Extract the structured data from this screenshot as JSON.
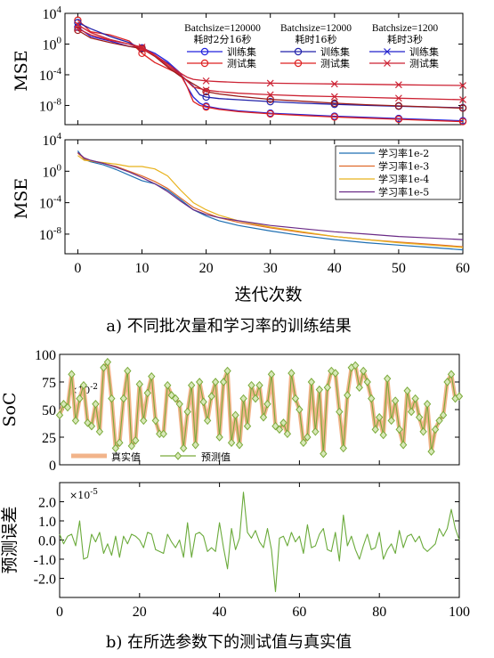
{
  "captions": {
    "a": "a)  不同批次量和学习率的训练结果",
    "b": "b)  在所选参数下的测试值与真实值"
  },
  "chart_data": [
    {
      "id": "batch",
      "type": "line",
      "ylabel": "MSE",
      "yscale": "log",
      "xlim": [
        -2,
        60
      ],
      "ylim_exp": [
        -10.5,
        4
      ],
      "yticks": [
        {
          "v": 4,
          "label": "10",
          "sup": "4"
        },
        {
          "v": 0,
          "label": "10",
          "sup": "0"
        },
        {
          "v": -4,
          "label": "10",
          "sup": "-4"
        },
        {
          "v": -8,
          "label": "10",
          "sup": "-8"
        }
      ],
      "legend_groups": [
        {
          "title": "Batchsize=120000",
          "time": "耗时2分16秒",
          "color": "#2222cc"
        },
        {
          "title": "Batchsize=12000",
          "time": "耗时16秒",
          "color": "#a02020"
        },
        {
          "title": "Batchsize=1200",
          "time": "耗时3秒",
          "color": "#dd2222"
        }
      ],
      "legend_labels": {
        "train": "训练集",
        "test": "测试集"
      },
      "series": [
        {
          "name": "Batchsize=120000 训练集",
          "color": "#2222dd",
          "marker": "o",
          "x": [
            0,
            2,
            5,
            8,
            10,
            12,
            14,
            16,
            17,
            18,
            19,
            20,
            22,
            25,
            30,
            35,
            40,
            45,
            50,
            55,
            60
          ],
          "y": [
            2.2,
            1.0,
            0.4,
            -0.3,
            -0.5,
            -1.2,
            -2.3,
            -3.8,
            -5.5,
            -6.9,
            -7.7,
            -8.1,
            -8.4,
            -8.7,
            -9.0,
            -9.2,
            -9.4,
            -9.55,
            -9.7,
            -9.85,
            -10.0
          ]
        },
        {
          "name": "Batchsize=120000 测试集",
          "color": "#dd2222",
          "marker": "o",
          "x": [
            0,
            1,
            2,
            5,
            8,
            10,
            12,
            14,
            16,
            17,
            18,
            19,
            20,
            22,
            25,
            30,
            35,
            40,
            45,
            50,
            55,
            60
          ],
          "y": [
            3.1,
            2.4,
            1.6,
            1.2,
            0.4,
            -1.2,
            -2.4,
            -3.2,
            -4.0,
            -5.5,
            -7.5,
            -8.0,
            -8.2,
            -8.5,
            -8.8,
            -9.1,
            -9.3,
            -9.5,
            -9.65,
            -9.8,
            -9.95,
            -10.1
          ]
        },
        {
          "name": "Batchsize=12000 训练集",
          "color": "#2222aa",
          "marker": "o",
          "x": [
            0,
            2,
            5,
            8,
            10,
            12,
            14,
            16,
            18,
            19,
            20,
            22,
            25,
            30,
            35,
            40,
            45,
            50,
            55,
            60
          ],
          "y": [
            2.8,
            2.0,
            1.0,
            0.2,
            -0.6,
            -1.5,
            -2.5,
            -4.0,
            -5.5,
            -6.6,
            -6.9,
            -7.1,
            -7.25,
            -7.5,
            -7.7,
            -7.85,
            -8.0,
            -8.1,
            -8.2,
            -8.3
          ]
        },
        {
          "name": "Batchsize=12000 测试集",
          "color": "#991a1a",
          "marker": "o",
          "x": [
            0,
            2,
            5,
            8,
            10,
            12,
            14,
            16,
            18,
            20,
            22,
            25,
            30,
            35,
            40,
            45,
            50,
            55,
            60
          ],
          "y": [
            1.8,
            0.8,
            0.2,
            -0.3,
            -0.6,
            -1.6,
            -3.0,
            -4.2,
            -5.2,
            -6.2,
            -6.5,
            -6.8,
            -7.2,
            -7.45,
            -7.7,
            -7.9,
            -8.05,
            -8.2,
            -8.35
          ]
        },
        {
          "name": "Batchsize=1200 训练集",
          "color": "#cc2233",
          "marker": "x",
          "x": [
            0,
            2,
            5,
            8,
            10,
            12,
            14,
            16,
            17,
            18,
            20,
            22,
            25,
            30,
            35,
            40,
            45,
            50,
            55,
            60
          ],
          "y": [
            2.5,
            1.5,
            0.6,
            0.0,
            -0.6,
            -1.5,
            -2.8,
            -4.0,
            -4.8,
            -5.6,
            -6.0,
            -6.2,
            -6.4,
            -6.6,
            -6.75,
            -6.85,
            -6.95,
            -7.05,
            -7.15,
            -7.25
          ]
        },
        {
          "name": "Batchsize=1200 测试集",
          "color": "#cc2233",
          "marker": "x",
          "x": [
            0,
            2,
            5,
            8,
            10,
            12,
            14,
            16,
            17,
            18,
            20,
            22,
            25,
            30,
            35,
            40,
            45,
            50,
            55,
            60
          ],
          "y": [
            2.0,
            1.2,
            0.5,
            0.0,
            -0.4,
            -1.4,
            -2.6,
            -3.8,
            -4.3,
            -4.6,
            -4.8,
            -4.9,
            -5.0,
            -5.1,
            -5.15,
            -5.2,
            -5.25,
            -5.3,
            -5.35,
            -5.4
          ]
        }
      ]
    },
    {
      "id": "lr",
      "type": "line",
      "xlabel": "迭代次数",
      "ylabel": "MSE",
      "yscale": "log",
      "xlim": [
        -2,
        60
      ],
      "ylim_exp": [
        -10.5,
        4
      ],
      "xticks": [
        0,
        10,
        20,
        30,
        40,
        50,
        60
      ],
      "yticks": [
        {
          "v": 4,
          "label": "10",
          "sup": "4"
        },
        {
          "v": 0,
          "label": "10",
          "sup": "0"
        },
        {
          "v": -4,
          "label": "10",
          "sup": "-4"
        },
        {
          "v": -8,
          "label": "10",
          "sup": "-8"
        }
      ],
      "series": [
        {
          "name": "学习率1e-2",
          "color": "#1f6fb2",
          "x": [
            0,
            1,
            2,
            4,
            6,
            8,
            10,
            12,
            14,
            16,
            18,
            20,
            22,
            25,
            30,
            35,
            40,
            45,
            50,
            55,
            60
          ],
          "y": [
            2.6,
            1.5,
            1.2,
            0.8,
            0.2,
            -0.5,
            -1.2,
            -1.6,
            -2.4,
            -3.6,
            -4.9,
            -5.7,
            -6.3,
            -6.9,
            -7.6,
            -8.2,
            -8.7,
            -9.1,
            -9.4,
            -9.7,
            -10.0
          ]
        },
        {
          "name": "学习率1e-3",
          "color": "#e06a2b",
          "x": [
            0,
            1,
            2,
            4,
            6,
            8,
            10,
            12,
            14,
            16,
            18,
            20,
            22,
            25,
            30,
            35,
            40,
            45,
            50,
            55,
            60
          ],
          "y": [
            2.3,
            1.6,
            1.3,
            1.0,
            0.6,
            0.0,
            -0.6,
            -1.3,
            -2.2,
            -3.4,
            -4.6,
            -5.3,
            -5.9,
            -6.5,
            -7.2,
            -7.8,
            -8.3,
            -8.7,
            -9.0,
            -9.3,
            -9.6
          ]
        },
        {
          "name": "学习率1e-4",
          "color": "#e8b21c",
          "x": [
            0,
            1,
            2,
            4,
            6,
            8,
            10,
            12,
            14,
            16,
            18,
            20,
            22,
            25,
            30,
            35,
            40,
            45,
            50,
            55,
            60
          ],
          "y": [
            2.0,
            1.4,
            1.3,
            1.1,
            0.9,
            0.6,
            0.6,
            0.3,
            -0.6,
            -2.4,
            -4.0,
            -4.9,
            -5.6,
            -6.3,
            -7.1,
            -7.7,
            -8.3,
            -8.7,
            -9.1,
            -9.4,
            -9.7
          ]
        },
        {
          "name": "学习率1e-5",
          "color": "#6a2a86",
          "x": [
            0,
            1,
            2,
            4,
            6,
            8,
            10,
            12,
            14,
            16,
            18,
            20,
            22,
            25,
            30,
            35,
            40,
            45,
            50,
            55,
            60
          ],
          "y": [
            2.4,
            1.7,
            1.4,
            1.0,
            0.5,
            -0.1,
            -0.8,
            -1.6,
            -2.6,
            -3.8,
            -4.9,
            -5.5,
            -5.9,
            -6.3,
            -6.9,
            -7.3,
            -7.7,
            -8.0,
            -8.3,
            -8.5,
            -8.7
          ]
        }
      ]
    },
    {
      "id": "soc",
      "type": "line",
      "ylabel": "SoC",
      "multiplier": "×10",
      "multiplier_exp": "-2",
      "xlim": [
        0,
        100
      ],
      "ylim": [
        0,
        100
      ],
      "yticks": [
        0,
        25,
        50,
        75,
        100
      ],
      "legend": [
        {
          "name": "真实值",
          "color": "#f2b48a"
        },
        {
          "name": "预测值",
          "color": "#7aaa3a"
        }
      ],
      "x": [
        0,
        1,
        2,
        3,
        4,
        5,
        6,
        7,
        8,
        9,
        10,
        11,
        12,
        13,
        14,
        15,
        16,
        17,
        18,
        19,
        20,
        21,
        22,
        23,
        24,
        25,
        26,
        27,
        28,
        29,
        30,
        31,
        32,
        33,
        34,
        35,
        36,
        37,
        38,
        39,
        40,
        41,
        42,
        43,
        44,
        45,
        46,
        47,
        48,
        49,
        50,
        51,
        52,
        53,
        54,
        55,
        56,
        57,
        58,
        59,
        60,
        61,
        62,
        63,
        64,
        65,
        66,
        67,
        68,
        69,
        70,
        71,
        72,
        73,
        74,
        75,
        76,
        77,
        78,
        79,
        80,
        81,
        82,
        83,
        84,
        85,
        86,
        87,
        88,
        89,
        90,
        91,
        92,
        93,
        94,
        95,
        96,
        97,
        98,
        99,
        100
      ],
      "y": [
        45,
        55,
        52,
        82,
        40,
        60,
        72,
        38,
        35,
        55,
        30,
        88,
        93,
        60,
        15,
        20,
        60,
        85,
        17,
        22,
        73,
        40,
        65,
        80,
        40,
        28,
        28,
        72,
        63,
        60,
        55,
        15,
        48,
        72,
        18,
        75,
        57,
        40,
        62,
        75,
        25,
        75,
        85,
        20,
        45,
        18,
        60,
        35,
        72,
        60,
        72,
        43,
        55,
        82,
        35,
        32,
        38,
        28,
        83,
        60,
        50,
        20,
        25,
        75,
        30,
        68,
        10,
        70,
        85,
        83,
        48,
        15,
        63,
        88,
        90,
        70,
        85,
        75,
        60,
        32,
        43,
        27,
        78,
        40,
        58,
        32,
        18,
        67,
        48,
        60,
        43,
        30,
        55,
        12,
        32,
        40,
        45,
        75,
        82,
        60,
        62
      ]
    },
    {
      "id": "err",
      "type": "line",
      "ylabel": "预测误差",
      "multiplier": "×10",
      "multiplier_exp": "-5",
      "xlim": [
        0,
        100
      ],
      "ylim": [
        -3,
        3
      ],
      "xticks": [
        0,
        20,
        40,
        60,
        80,
        100
      ],
      "yticks": [
        {
          "v": 2,
          "label": "2.0"
        },
        {
          "v": 1,
          "label": "1.0"
        },
        {
          "v": 0,
          "label": "0.0"
        },
        {
          "v": -1,
          "label": "-1.0"
        },
        {
          "v": -2,
          "label": "-2.0"
        }
      ],
      "color": "#6aaa3a",
      "x": [
        0,
        1,
        2,
        3,
        4,
        5,
        6,
        7,
        8,
        9,
        10,
        11,
        12,
        13,
        14,
        15,
        16,
        17,
        18,
        19,
        20,
        21,
        22,
        23,
        24,
        25,
        26,
        27,
        28,
        29,
        30,
        31,
        32,
        33,
        34,
        35,
        36,
        37,
        38,
        39,
        40,
        41,
        42,
        43,
        44,
        45,
        46,
        47,
        48,
        49,
        50,
        51,
        52,
        53,
        54,
        55,
        56,
        57,
        58,
        59,
        60,
        61,
        62,
        63,
        64,
        65,
        66,
        67,
        68,
        69,
        70,
        71,
        72,
        73,
        74,
        75,
        76,
        77,
        78,
        79,
        80,
        81,
        82,
        83,
        84,
        85,
        86,
        87,
        88,
        89,
        90,
        91,
        92,
        93,
        94,
        95,
        96,
        97,
        98,
        99,
        100
      ],
      "y": [
        0.3,
        -0.2,
        0.2,
        0.3,
        -0.3,
        1.0,
        -1.0,
        -0.9,
        0.3,
        -0.1,
        0.4,
        -0.7,
        -0.2,
        -0.8,
        0.2,
        -0.9,
        0.2,
        -0.2,
        0.3,
        0.2,
        0.0,
        -0.4,
        0.4,
        0.3,
        -0.5,
        -0.6,
        -0.7,
        0.3,
        -0.1,
        -0.4,
        0.0,
        -0.9,
        0.9,
        -0.9,
        0.3,
        0.4,
        0.2,
        -0.6,
        -0.4,
        -0.6,
        0.9,
        -0.4,
        -1.5,
        0.6,
        -0.5,
        0.1,
        2.5,
        0.4,
        0.1,
        0.5,
        -0.1,
        -0.4,
        0.6,
        -0.5,
        -2.7,
        0.1,
        0.2,
        -0.3,
        0.4,
        -0.1,
        0.2,
        -0.7,
        0.8,
        -0.4,
        -0.3,
        0.3,
        0.6,
        -0.5,
        -0.6,
        0.4,
        -1.1,
        1.3,
        -0.3,
        0.2,
        -0.5,
        -1.0,
        -0.3,
        0.3,
        -0.5,
        -0.4,
        0.4,
        -1.0,
        -0.5,
        -0.2,
        -0.7,
        0.5,
        -0.4,
        0.2,
        0.3,
        -0.1,
        0.2,
        -0.4,
        -0.6,
        -0.4,
        -0.2,
        0.6,
        0.2,
        0.6,
        1.6,
        0.6,
        0.0
      ]
    }
  ]
}
